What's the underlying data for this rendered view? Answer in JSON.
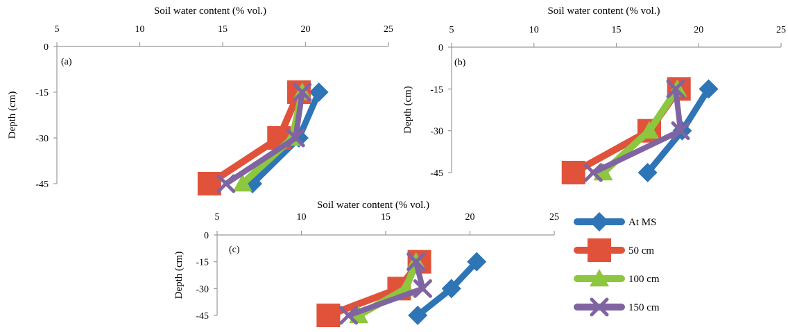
{
  "chart_data": [
    {
      "panel": "(a)",
      "type": "line",
      "xlabel": "Soil water content (% vol.)",
      "ylabel": "Depth (cm)",
      "xlim": [
        5,
        25
      ],
      "ylim": [
        -45,
        0
      ],
      "xticks": [
        "5",
        "10",
        "15",
        "20",
        "25"
      ],
      "yticks": [
        "0",
        "-15",
        "-30",
        "-45"
      ],
      "x_axis_position": "top",
      "y": [
        -15,
        -30,
        -45
      ],
      "series": [
        {
          "name": "At MS",
          "color": "#2e75b6",
          "marker": "diamond",
          "values": [
            20.8,
            19.6,
            16.8
          ]
        },
        {
          "name": "50 cm",
          "color": "#e0533a",
          "marker": "square",
          "values": [
            19.6,
            18.4,
            14.2
          ]
        },
        {
          "name": "100 cm",
          "color": "#8dc63f",
          "marker": "triangle",
          "values": [
            19.8,
            19.2,
            16.2
          ]
        },
        {
          "name": "150 cm",
          "color": "#8064a2",
          "marker": "x",
          "values": [
            19.8,
            19.4,
            15.2
          ]
        }
      ]
    },
    {
      "panel": "(b)",
      "type": "line",
      "xlabel": "Soil water content (% vol.)",
      "ylabel": "Depth (cm)",
      "xlim": [
        5,
        25
      ],
      "ylim": [
        -45,
        0
      ],
      "xticks": [
        "5",
        "10",
        "15",
        "20",
        "25"
      ],
      "yticks": [
        "0",
        "-15",
        "-30",
        "-45"
      ],
      "x_axis_position": "top",
      "y": [
        -15,
        -30,
        -45
      ],
      "series": [
        {
          "name": "At MS",
          "color": "#2e75b6",
          "marker": "diamond",
          "values": [
            20.6,
            19.0,
            16.9
          ]
        },
        {
          "name": "50 cm",
          "color": "#e0533a",
          "marker": "square",
          "values": [
            18.8,
            17.0,
            12.4
          ]
        },
        {
          "name": "100 cm",
          "color": "#8dc63f",
          "marker": "triangle",
          "values": [
            18.7,
            17.0,
            14.2
          ]
        },
        {
          "name": "150 cm",
          "color": "#8064a2",
          "marker": "x",
          "values": [
            18.6,
            18.9,
            13.6
          ]
        }
      ]
    },
    {
      "panel": "(c)",
      "type": "line",
      "xlabel": "Soil water content (% vol.)",
      "ylabel": "Depth (cm)",
      "xlim": [
        5,
        25
      ],
      "ylim": [
        -45,
        0
      ],
      "xticks": [
        "5",
        "10",
        "15",
        "20",
        "25"
      ],
      "yticks": [
        "0",
        "-15",
        "-30",
        "-45"
      ],
      "x_axis_position": "top",
      "y": [
        -15,
        -30,
        -45
      ],
      "series": [
        {
          "name": "At MS",
          "color": "#2e75b6",
          "marker": "diamond",
          "values": [
            20.4,
            18.9,
            16.9
          ]
        },
        {
          "name": "50 cm",
          "color": "#e0533a",
          "marker": "square",
          "values": [
            17.0,
            15.8,
            11.6
          ]
        },
        {
          "name": "100 cm",
          "color": "#8dc63f",
          "marker": "triangle",
          "values": [
            16.8,
            16.2,
            13.4
          ]
        },
        {
          "name": "150 cm",
          "color": "#8064a2",
          "marker": "x",
          "values": [
            16.8,
            17.2,
            12.8
          ]
        }
      ]
    }
  ],
  "legend": {
    "position": "bottom-right",
    "entries": [
      {
        "label": "At MS",
        "color": "#2e75b6",
        "marker": "diamond"
      },
      {
        "label": "50 cm",
        "color": "#e0533a",
        "marker": "square"
      },
      {
        "label": "100 cm",
        "color": "#8dc63f",
        "marker": "triangle"
      },
      {
        "label": "150 cm",
        "color": "#8064a2",
        "marker": "x"
      }
    ]
  }
}
